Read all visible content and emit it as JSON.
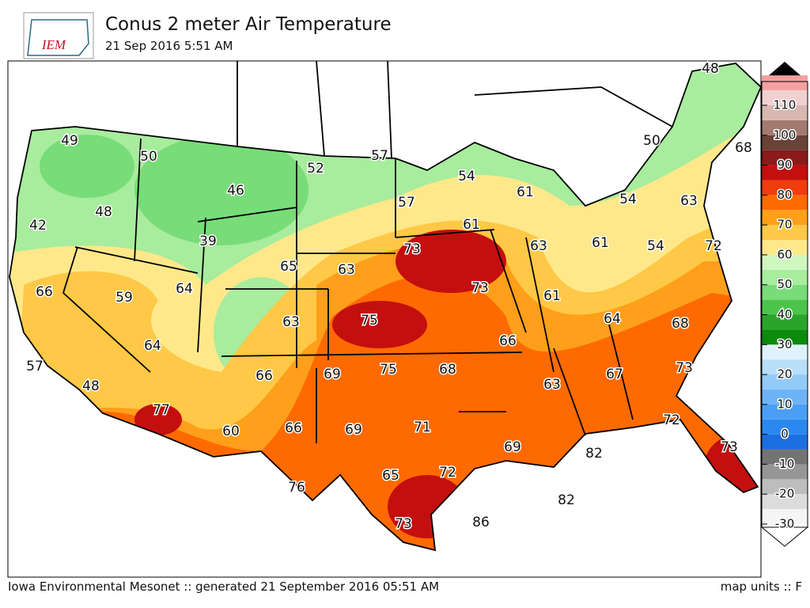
{
  "header": {
    "logo": "IEM",
    "title": "Conus 2 meter Air Temperature",
    "subtitle": "21 Sep 2016 5:51 AM"
  },
  "stations": [
    48,
    49,
    50,
    57,
    52,
    54,
    50,
    68,
    46,
    48,
    57,
    61,
    42,
    61,
    54,
    63,
    39,
    73,
    63,
    61,
    54,
    72,
    65,
    63,
    66,
    59,
    64,
    73,
    61,
    63,
    75,
    64,
    68,
    64,
    66,
    57,
    69,
    75,
    68,
    66,
    67,
    73,
    48,
    63,
    77,
    60,
    66,
    69,
    71,
    72,
    69,
    82,
    73,
    65,
    72,
    76,
    82,
    86,
    73
  ],
  "colorbar": {
    "ticks": [
      -30,
      -20,
      -10,
      0,
      10,
      20,
      30,
      40,
      50,
      60,
      70,
      80,
      90,
      100,
      110
    ],
    "colors": [
      "#f5f5f5",
      "#dcdcdc",
      "#bdbdbd",
      "#969696",
      "#737373",
      "#1c6fe0",
      "#2b88f0",
      "#4a9ff5",
      "#6db4f7",
      "#93cbf8",
      "#b8def9",
      "#dff2fb",
      "#0c8a0c",
      "#2aa52a",
      "#4cc44c",
      "#78dc78",
      "#a8ec9e",
      "#d0f7c0",
      "#ffe88a",
      "#ffc846",
      "#ff9f1a",
      "#ff6a00",
      "#ef3d0e",
      "#c40f0f",
      "#8b1a1a",
      "#6b4238",
      "#a37a70",
      "#d8b8b0",
      "#f0d0d0",
      "#f5a0a0"
    ]
  },
  "footer": {
    "left": "Iowa Environmental Mesonet :: generated 21 September 2016 05:51 AM",
    "right": "map units :: F"
  }
}
